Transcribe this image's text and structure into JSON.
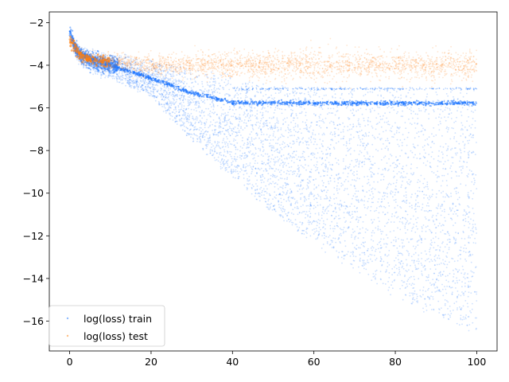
{
  "chart_data": {
    "type": "scatter",
    "title": "",
    "xlabel": "",
    "ylabel": "",
    "xlim": [
      -5,
      105
    ],
    "ylim": [
      -17.4,
      -1.5
    ],
    "grid": false,
    "legend_position": "lower-left",
    "xticks": [
      0,
      20,
      40,
      60,
      80,
      100
    ],
    "yticks": [
      -2,
      -4,
      -6,
      -8,
      -10,
      -12,
      -14,
      -16
    ],
    "series": [
      {
        "name": "log(loss) train",
        "color": "#1f77ff",
        "x": [
          0,
          1,
          2,
          3,
          5,
          7,
          10,
          15,
          20,
          25,
          30,
          35,
          40,
          45,
          50,
          55,
          60,
          65,
          70,
          75,
          80,
          85,
          90,
          95,
          100
        ],
        "y_center": [
          -2.4,
          -3.0,
          -3.4,
          -3.6,
          -3.8,
          -3.9,
          -4.0,
          -4.2,
          -4.4,
          -4.7,
          -5.0,
          -5.3,
          -5.6,
          -5.9,
          -6.3,
          -6.7,
          -7.1,
          -7.5,
          -7.9,
          -8.3,
          -8.7,
          -9.1,
          -9.5,
          -9.9,
          -10.2
        ],
        "y_low": [
          -2.5,
          -3.3,
          -3.8,
          -4.0,
          -4.2,
          -4.4,
          -4.6,
          -5.0,
          -5.4,
          -6.5,
          -7.5,
          -8.4,
          -9.3,
          -10.1,
          -10.9,
          -11.6,
          -12.3,
          -13.0,
          -13.6,
          -14.2,
          -14.8,
          -15.3,
          -15.8,
          -16.2,
          -16.5
        ],
        "y_high": [
          -2.3,
          -2.9,
          -3.1,
          -3.2,
          -3.3,
          -3.4,
          -3.5,
          -3.6,
          -3.8,
          -4.0,
          -4.2,
          -4.4,
          -4.6,
          -4.8,
          -4.9,
          -5.0,
          -5.0,
          -5.0,
          -5.1,
          -5.1,
          -5.1,
          -5.1,
          -5.1,
          -5.1,
          -5.1
        ],
        "plateau_line": [
          {
            "x": 0,
            "y": -2.4
          },
          {
            "x": 2,
            "y": -3.4
          },
          {
            "x": 10,
            "y": -4.0
          },
          {
            "x": 20,
            "y": -4.6
          },
          {
            "x": 30,
            "y": -5.3
          },
          {
            "x": 40,
            "y": -5.75
          },
          {
            "x": 60,
            "y": -5.78
          },
          {
            "x": 80,
            "y": -5.79
          },
          {
            "x": 100,
            "y": -5.78
          }
        ]
      },
      {
        "name": "log(loss) test",
        "color": "#ff7f0e",
        "x": [
          0,
          1,
          2,
          3,
          5,
          7,
          10,
          15,
          20,
          25,
          30,
          40,
          50,
          60,
          70,
          80,
          90,
          100
        ],
        "y_center": [
          -2.9,
          -3.1,
          -3.4,
          -3.6,
          -3.7,
          -3.8,
          -3.8,
          -3.9,
          -4.0,
          -4.0,
          -4.0,
          -4.0,
          -4.0,
          -4.0,
          -4.0,
          -4.0,
          -4.0,
          -4.0
        ],
        "y_spread": [
          0.2,
          0.3,
          0.3,
          0.3,
          0.35,
          0.35,
          0.4,
          0.4,
          0.45,
          0.45,
          0.5,
          0.55,
          0.55,
          0.6,
          0.6,
          0.6,
          0.6,
          0.6
        ]
      }
    ]
  },
  "legend": {
    "items": [
      {
        "label": "log(loss) train",
        "color": "#1f77ff"
      },
      {
        "label": "log(loss) test",
        "color": "#ff7f0e"
      }
    ]
  },
  "axes": {
    "x_tick_labels": [
      "0",
      "20",
      "40",
      "60",
      "80",
      "100"
    ],
    "y_tick_labels": [
      "−2",
      "−4",
      "−6",
      "−8",
      "−10",
      "−12",
      "−14",
      "−16"
    ]
  }
}
